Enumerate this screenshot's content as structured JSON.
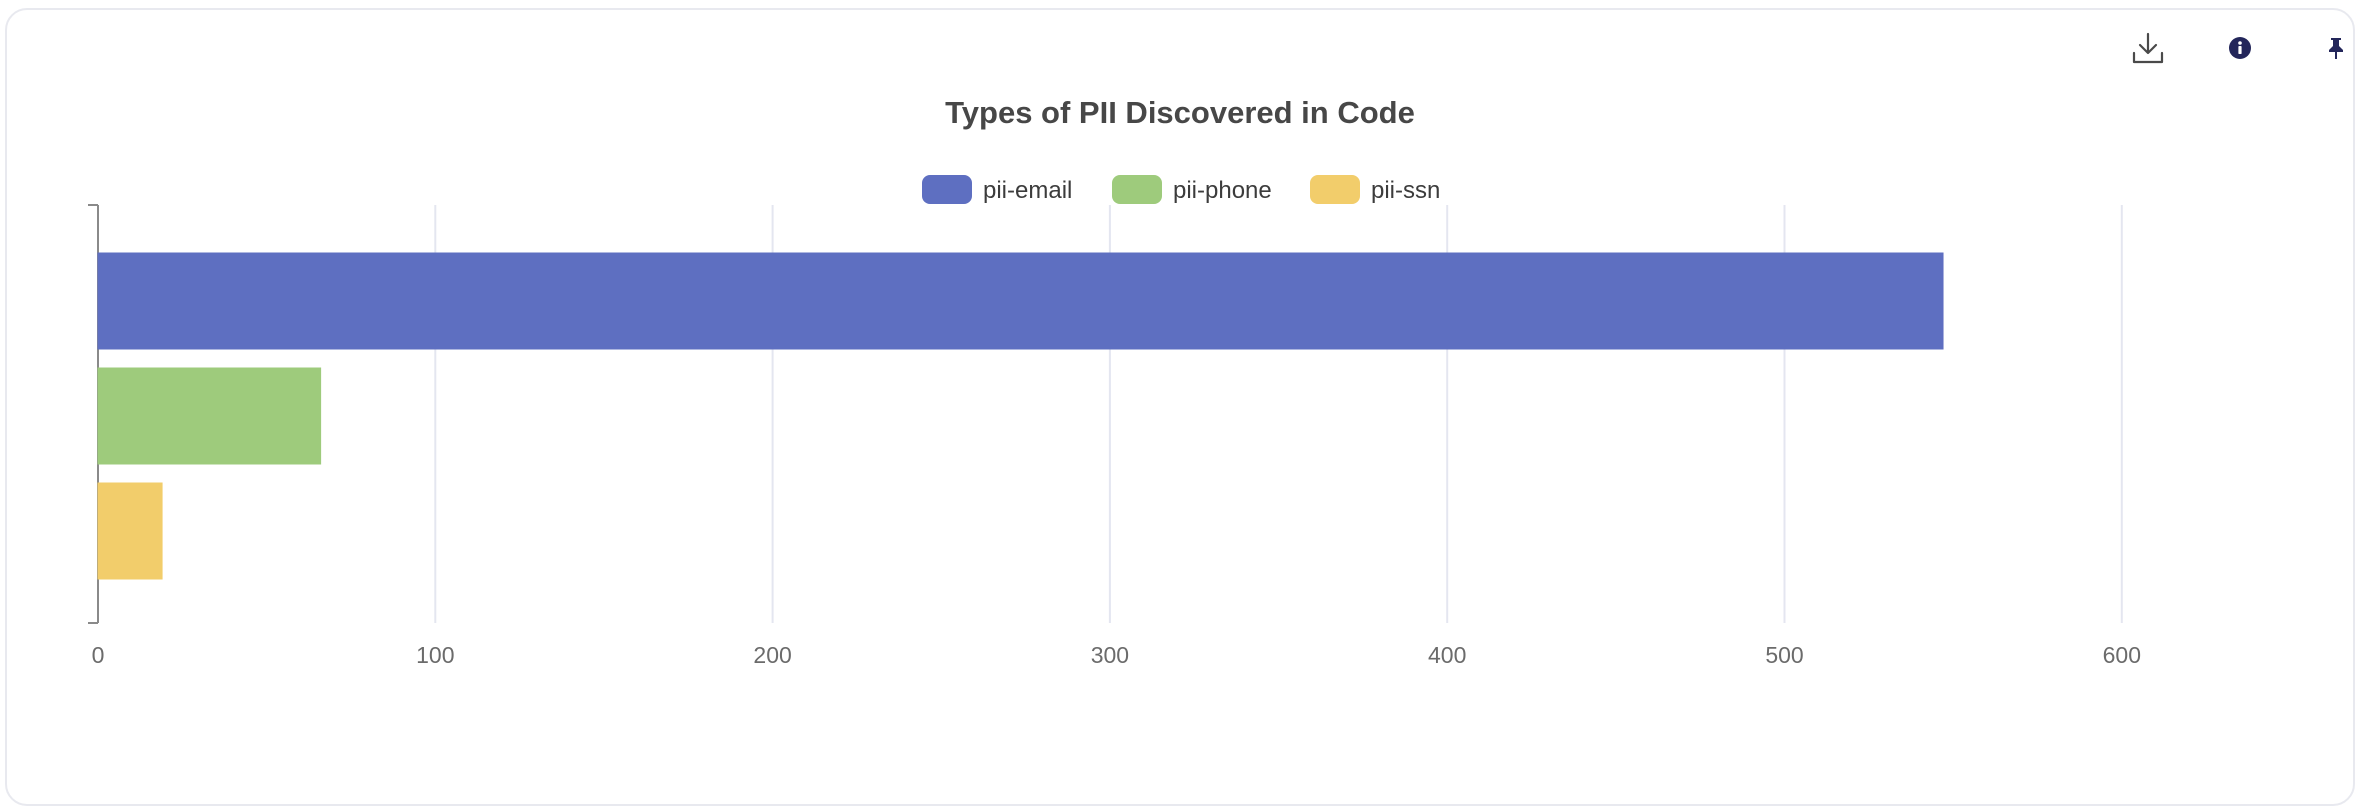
{
  "toolbar": {
    "download_icon": "download-icon",
    "info_icon": "info-icon",
    "pin_icon": "pin-icon",
    "icon_color": "#2b2d5c"
  },
  "chart_data": {
    "type": "bar",
    "orientation": "horizontal",
    "title": "Types of PII Discovered in Code",
    "xlabel": "",
    "ylabel": "",
    "xlim": [
      0,
      600
    ],
    "xticks": [
      0,
      100,
      200,
      300,
      400,
      500,
      600
    ],
    "grid": true,
    "legend_position": "top-center",
    "series": [
      {
        "name": "pii-email",
        "value": 547,
        "color": "#5e6fc1"
      },
      {
        "name": "pii-phone",
        "value": 66,
        "color": "#9ecb7c"
      },
      {
        "name": "pii-ssn",
        "value": 19,
        "color": "#f2cd6b"
      }
    ]
  }
}
